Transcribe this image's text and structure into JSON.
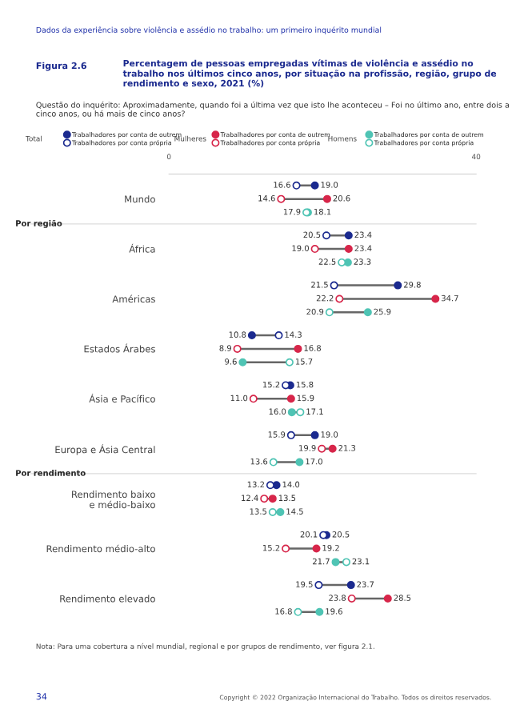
{
  "chart_data": {
    "type": "scatter",
    "orientation": "horizontal",
    "title": "Percentagem de pessoas empregadas vítimas de violência e assédio no trabalho nos últimos cinco anos, por situação na profissão, região, grupo de rendimento e sexo, 2021 (%)",
    "subtitle": "Questão do inquérito: Aproximadamente, quando foi a última vez que isto lhe aconteceu – Foi no último ano, entre dois a cinco anos, ou há mais de cinco anos?",
    "categories": [
      "Mundo",
      "África",
      "Américas",
      "Estados Árabes",
      "Ásia e Pacífico",
      "Europa e Ásia Central",
      "Rendimento baixo\ne médio-baixo",
      "Rendimento médio-alto",
      "Rendimento elevado"
    ],
    "series": [
      {
        "name": "Trabalhadores por conta de outrem",
        "color": "#1b2a8f",
        "values": [
          19.0,
          23.4,
          29.8,
          10.8,
          15.8,
          19.0,
          14.0,
          20.5,
          23.7
        ],
        "value_labels": [
          "19.0",
          "23.4",
          "29.8",
          "10.8",
          "15.8",
          "19.0",
          "14.0",
          "20.5",
          "23.7"
        ]
      },
      {
        "name": "Trabalhadores por conta própria",
        "color": "#1b2a8f",
        "values": [
          16.6,
          20.5,
          21.5,
          14.3,
          15.2,
          15.9,
          13.2,
          20.1,
          19.5
        ],
        "value_labels": [
          "16.6",
          "20.5",
          "21.5",
          "14.3",
          "15.2",
          "15.9",
          "13.2",
          "20.1",
          "19.5"
        ]
      },
      {
        "name": "Trabalhadores por conta de outrem",
        "color": "#d7264a",
        "values": [
          20.6,
          23.4,
          34.7,
          16.8,
          15.9,
          21.3,
          13.5,
          19.2,
          28.5
        ],
        "value_labels": [
          "20.6",
          "23.4",
          "34.7",
          "16.8",
          "15.9",
          "21.3",
          "13.5",
          "19.2",
          "28.5"
        ]
      },
      {
        "name": "Trabalhadores por conta própria",
        "color": "#d7264a",
        "values": [
          14.6,
          19.0,
          22.2,
          8.9,
          11.0,
          19.9,
          12.4,
          15.2,
          23.8
        ],
        "value_labels": [
          "14.6",
          "19.0",
          "22.2",
          "8.9",
          "11.0",
          "19.9",
          "12.4",
          "15.2",
          "23.8"
        ]
      },
      {
        "name": "Trabalhadores por conta de outrem",
        "color": "#4fc4b4",
        "values": [
          18.1,
          23.3,
          25.9,
          9.6,
          16.0,
          17.0,
          14.5,
          21.7,
          19.6
        ],
        "value_labels": [
          "18.1",
          "23.3",
          "25.9",
          "9.6",
          "16.0",
          "17.0",
          "14.5",
          "21.7",
          "19.6"
        ]
      },
      {
        "name": "Trabalhadores por conta própria",
        "color": "#4fc4b4",
        "values": [
          17.9,
          22.5,
          20.9,
          15.7,
          17.1,
          13.6,
          13.5,
          23.1,
          16.8
        ],
        "value_labels": [
          "17.9",
          "22.5",
          "20.9",
          "15.7",
          "17.1",
          "13.6",
          "13.5",
          "23.1",
          "16.8"
        ]
      }
    ],
    "xlim": [
      0,
      40
    ],
    "xticks": [
      0,
      40
    ],
    "marker": "circle",
    "legend": "top",
    "grid": false,
    "annotations": [
      "Dados da experiência sobre violência e assédio no trabalho: um primeiro inquérito mundial",
      "Figura 2.6",
      "Total",
      "Mulheres",
      "Homens",
      "Por região",
      "Por rendimento",
      "Nota: Para uma cobertura a nível mundial, regional e por grupos de rendimento, ver figura 2.1.",
      "34",
      "Copyright © 2022 Organização Internacional do Trabalho. Todos os direitos reservados."
    ]
  }
}
